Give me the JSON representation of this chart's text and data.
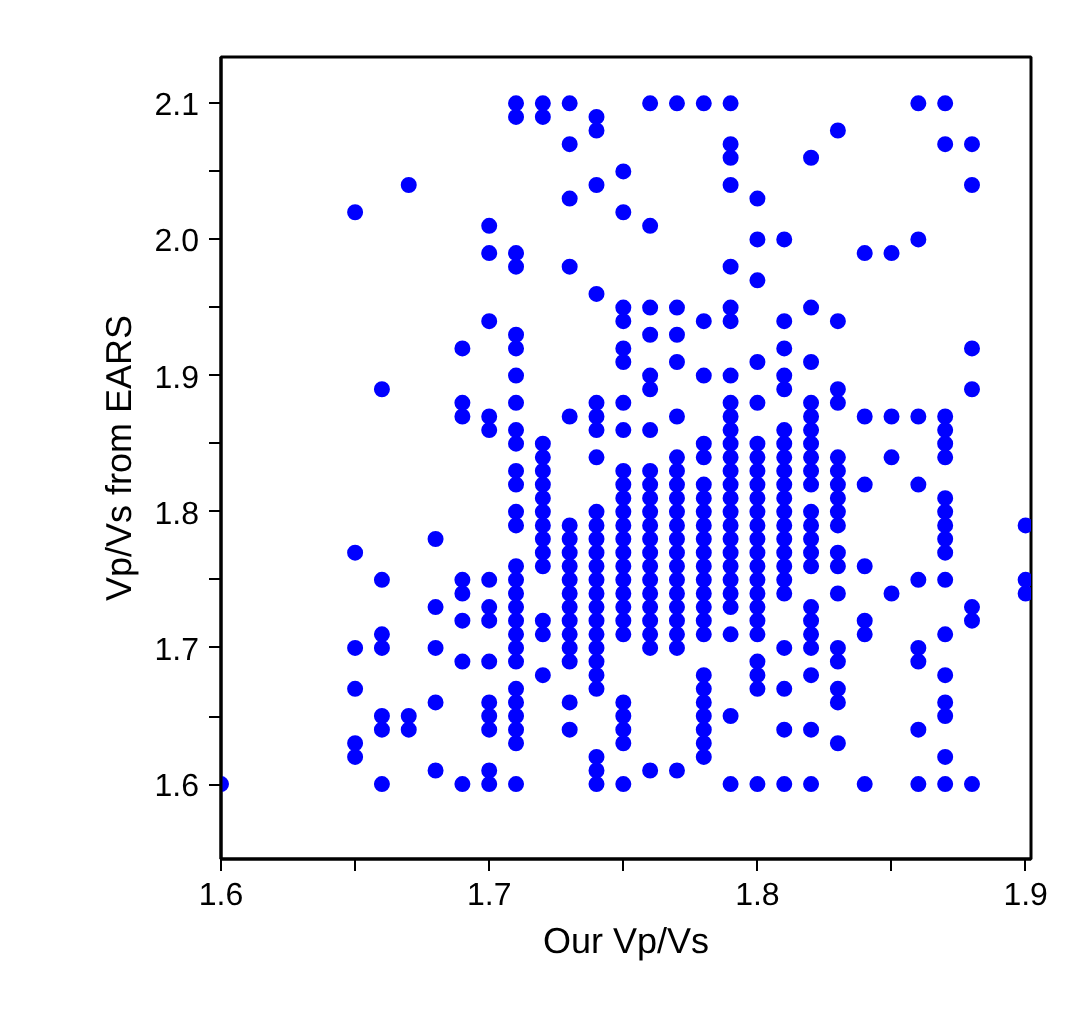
{
  "chart_data": {
    "type": "scatter",
    "xlabel": "Our Vp/Vs",
    "ylabel": "Vp/Vs from EARS",
    "xlim": [
      1.6,
      1.902
    ],
    "ylim": [
      1.545,
      2.134
    ],
    "xticks": [
      1.6,
      {
        "value": 1.65,
        "label": null
      },
      1.7,
      {
        "value": 1.75,
        "label": null
      },
      1.8,
      {
        "value": 1.85,
        "label": null
      },
      1.9
    ],
    "yticks": [
      1.6,
      {
        "value": 1.65,
        "label": null
      },
      1.7,
      {
        "value": 1.75,
        "label": null
      },
      1.8,
      {
        "value": 1.85,
        "label": null
      },
      1.9,
      {
        "value": 1.95,
        "label": null
      },
      {
        "value": 2.0,
        "label": "2.0"
      },
      {
        "value": 2.05,
        "label": null
      },
      2.1
    ],
    "grid": false,
    "marker": "circle",
    "series": [
      {
        "color": "#0000ff",
        "x": [
          1.6,
          1.65,
          1.65,
          1.65,
          1.65,
          1.65,
          1.65,
          1.66,
          1.66,
          1.66,
          1.66,
          1.66,
          1.66,
          1.66,
          1.67,
          1.67,
          1.67,
          1.68,
          1.68,
          1.68,
          1.68,
          1.68
        ],
        "values": [
          1.6,
          2.02,
          1.77,
          1.7,
          1.67,
          1.63,
          1.62,
          1.89,
          1.75,
          1.71,
          1.7,
          1.65,
          1.64,
          1.6,
          2.04,
          1.65,
          1.64,
          1.78,
          1.73,
          1.7,
          1.66,
          1.61
        ]
      },
      {
        "color": "#0000ff",
        "x": [
          1.69,
          1.69,
          1.69,
          1.69,
          1.69,
          1.69,
          1.69,
          1.69,
          1.7,
          1.7,
          1.7,
          1.7,
          1.7,
          1.7,
          1.7,
          1.7,
          1.7,
          1.7,
          1.7,
          1.7,
          1.7,
          1.7
        ],
        "values": [
          1.92,
          1.88,
          1.87,
          1.75,
          1.74,
          1.72,
          1.69,
          1.6,
          2.01,
          1.99,
          1.94,
          1.87,
          1.86,
          1.75,
          1.73,
          1.72,
          1.69,
          1.66,
          1.65,
          1.64,
          1.61,
          1.6
        ]
      },
      {
        "color": "#0000ff",
        "x": [
          1.71,
          1.71,
          1.71,
          1.71,
          1.71,
          1.71,
          1.71,
          1.71,
          1.71,
          1.71,
          1.71,
          1.71,
          1.71,
          1.71,
          1.71,
          1.71,
          1.71,
          1.71,
          1.71,
          1.71,
          1.71,
          1.71,
          1.71,
          1.71,
          1.71,
          1.71,
          1.71,
          1.71
        ],
        "values": [
          2.1,
          2.09,
          1.99,
          1.98,
          1.93,
          1.92,
          1.9,
          1.88,
          1.86,
          1.85,
          1.83,
          1.82,
          1.8,
          1.79,
          1.76,
          1.75,
          1.74,
          1.73,
          1.72,
          1.71,
          1.7,
          1.69,
          1.67,
          1.66,
          1.65,
          1.64,
          1.63,
          1.6
        ]
      },
      {
        "color": "#0000ff",
        "x": [
          1.72,
          1.72,
          1.72,
          1.72,
          1.72,
          1.72,
          1.72,
          1.72,
          1.72,
          1.72,
          1.72,
          1.72,
          1.72,
          1.72,
          1.72
        ],
        "values": [
          2.1,
          2.09,
          1.85,
          1.84,
          1.83,
          1.82,
          1.81,
          1.8,
          1.79,
          1.78,
          1.77,
          1.76,
          1.72,
          1.71,
          1.68
        ]
      },
      {
        "color": "#0000ff",
        "x": [
          1.73,
          1.73,
          1.73,
          1.73,
          1.73,
          1.73,
          1.73,
          1.73,
          1.73,
          1.73,
          1.73,
          1.73,
          1.73,
          1.73,
          1.73,
          1.73,
          1.73,
          1.73
        ],
        "values": [
          2.1,
          2.07,
          2.03,
          1.98,
          1.87,
          1.79,
          1.78,
          1.77,
          1.76,
          1.75,
          1.74,
          1.73,
          1.72,
          1.71,
          1.7,
          1.69,
          1.66,
          1.64
        ]
      },
      {
        "color": "#0000ff",
        "x": [
          1.74,
          1.74,
          1.74,
          1.74,
          1.74,
          1.74,
          1.74,
          1.74,
          1.74,
          1.74,
          1.74,
          1.74,
          1.74,
          1.74,
          1.74,
          1.74,
          1.74,
          1.74,
          1.74,
          1.74,
          1.74,
          1.74,
          1.74,
          1.74,
          1.74
        ],
        "values": [
          2.09,
          2.08,
          2.04,
          1.96,
          1.88,
          1.87,
          1.86,
          1.84,
          1.8,
          1.79,
          1.78,
          1.77,
          1.76,
          1.75,
          1.74,
          1.73,
          1.72,
          1.71,
          1.7,
          1.69,
          1.68,
          1.67,
          1.62,
          1.61,
          1.6
        ]
      },
      {
        "color": "#0000ff",
        "x": [
          1.75,
          1.75,
          1.75,
          1.75,
          1.75,
          1.75,
          1.75,
          1.75,
          1.75,
          1.75,
          1.75,
          1.75,
          1.75,
          1.75,
          1.75,
          1.75,
          1.75,
          1.75,
          1.75,
          1.75,
          1.75,
          1.75,
          1.75,
          1.75,
          1.75,
          1.75
        ],
        "values": [
          2.05,
          2.02,
          1.95,
          1.94,
          1.92,
          1.91,
          1.88,
          1.86,
          1.83,
          1.82,
          1.81,
          1.8,
          1.79,
          1.78,
          1.77,
          1.76,
          1.75,
          1.74,
          1.73,
          1.72,
          1.71,
          1.66,
          1.65,
          1.64,
          1.63,
          1.6
        ]
      },
      {
        "color": "#0000ff",
        "x": [
          1.76,
          1.76,
          1.76,
          1.76,
          1.76,
          1.76,
          1.76,
          1.76,
          1.76,
          1.76,
          1.76,
          1.76,
          1.76,
          1.76,
          1.76,
          1.76,
          1.76,
          1.76,
          1.76,
          1.76,
          1.76,
          1.76
        ],
        "values": [
          2.1,
          2.01,
          1.95,
          1.93,
          1.9,
          1.89,
          1.86,
          1.83,
          1.82,
          1.81,
          1.8,
          1.79,
          1.78,
          1.77,
          1.76,
          1.75,
          1.74,
          1.73,
          1.72,
          1.71,
          1.7,
          1.61
        ]
      },
      {
        "color": "#0000ff",
        "x": [
          1.77,
          1.77,
          1.77,
          1.77,
          1.77,
          1.77,
          1.77,
          1.77,
          1.77,
          1.77,
          1.77,
          1.77,
          1.77,
          1.77,
          1.77,
          1.77,
          1.77,
          1.77,
          1.77,
          1.77,
          1.77
        ],
        "values": [
          2.1,
          1.95,
          1.93,
          1.91,
          1.87,
          1.84,
          1.83,
          1.82,
          1.81,
          1.8,
          1.79,
          1.78,
          1.77,
          1.76,
          1.75,
          1.74,
          1.73,
          1.72,
          1.71,
          1.7,
          1.61
        ]
      },
      {
        "color": "#0000ff",
        "x": [
          1.78,
          1.78,
          1.78,
          1.78,
          1.78,
          1.78,
          1.78,
          1.78,
          1.78,
          1.78,
          1.78,
          1.78,
          1.78,
          1.78,
          1.78,
          1.78,
          1.78,
          1.78,
          1.78,
          1.78,
          1.78,
          1.78,
          1.78,
          1.78
        ],
        "values": [
          2.1,
          1.94,
          1.9,
          1.85,
          1.84,
          1.82,
          1.81,
          1.8,
          1.79,
          1.78,
          1.77,
          1.76,
          1.75,
          1.74,
          1.73,
          1.72,
          1.71,
          1.68,
          1.67,
          1.66,
          1.65,
          1.64,
          1.63,
          1.62
        ]
      },
      {
        "color": "#0000ff",
        "x": [
          1.79,
          1.79,
          1.79,
          1.79,
          1.79,
          1.79,
          1.79,
          1.79,
          1.79,
          1.79,
          1.79,
          1.79,
          1.79,
          1.79,
          1.79,
          1.79,
          1.79,
          1.79,
          1.79,
          1.79,
          1.79,
          1.79,
          1.79,
          1.79,
          1.79,
          1.79,
          1.79
        ],
        "values": [
          2.1,
          2.07,
          2.06,
          2.04,
          1.98,
          1.95,
          1.94,
          1.9,
          1.88,
          1.87,
          1.86,
          1.85,
          1.84,
          1.83,
          1.82,
          1.81,
          1.8,
          1.79,
          1.78,
          1.77,
          1.76,
          1.75,
          1.74,
          1.73,
          1.71,
          1.65,
          1.6
        ]
      },
      {
        "color": "#0000ff",
        "x": [
          1.8,
          1.8,
          1.8,
          1.8,
          1.8,
          1.8,
          1.8,
          1.8,
          1.8,
          1.8,
          1.8,
          1.8,
          1.8,
          1.8,
          1.8,
          1.8,
          1.8,
          1.8,
          1.8,
          1.8,
          1.8,
          1.8,
          1.8,
          1.8
        ],
        "values": [
          2.03,
          2.0,
          1.97,
          1.91,
          1.88,
          1.85,
          1.84,
          1.83,
          1.82,
          1.81,
          1.8,
          1.79,
          1.78,
          1.77,
          1.76,
          1.75,
          1.74,
          1.73,
          1.72,
          1.71,
          1.69,
          1.68,
          1.67,
          1.6
        ]
      },
      {
        "color": "#0000ff",
        "x": [
          1.81,
          1.81,
          1.81,
          1.81,
          1.81,
          1.81,
          1.81,
          1.81,
          1.81,
          1.81,
          1.81,
          1.81,
          1.81,
          1.81,
          1.81,
          1.81,
          1.81,
          1.81,
          1.81,
          1.81,
          1.81,
          1.81
        ],
        "values": [
          2.0,
          1.94,
          1.92,
          1.9,
          1.89,
          1.86,
          1.85,
          1.84,
          1.83,
          1.82,
          1.81,
          1.8,
          1.79,
          1.78,
          1.77,
          1.76,
          1.75,
          1.74,
          1.7,
          1.67,
          1.64,
          1.6
        ]
      },
      {
        "color": "#0000ff",
        "x": [
          1.82,
          1.82,
          1.82,
          1.82,
          1.82,
          1.82,
          1.82,
          1.82,
          1.82,
          1.82,
          1.82,
          1.82,
          1.82,
          1.82,
          1.82,
          1.82,
          1.82,
          1.82,
          1.82,
          1.82,
          1.82,
          1.82
        ],
        "values": [
          2.06,
          1.95,
          1.91,
          1.88,
          1.87,
          1.86,
          1.85,
          1.84,
          1.83,
          1.82,
          1.8,
          1.79,
          1.78,
          1.77,
          1.76,
          1.73,
          1.72,
          1.71,
          1.7,
          1.68,
          1.64,
          1.6
        ]
      },
      {
        "color": "#0000ff",
        "x": [
          1.83,
          1.83,
          1.83,
          1.83,
          1.83,
          1.83,
          1.83,
          1.83,
          1.83,
          1.83,
          1.83,
          1.83,
          1.83,
          1.83,
          1.83,
          1.83,
          1.83,
          1.83
        ],
        "values": [
          2.08,
          1.94,
          1.89,
          1.88,
          1.84,
          1.83,
          1.82,
          1.81,
          1.8,
          1.79,
          1.77,
          1.76,
          1.74,
          1.7,
          1.69,
          1.67,
          1.66,
          1.63
        ]
      },
      {
        "color": "#0000ff",
        "x": [
          1.84,
          1.84,
          1.84,
          1.84,
          1.84,
          1.84,
          1.84,
          1.85,
          1.85,
          1.85,
          1.85,
          1.86,
          1.86,
          1.86,
          1.86,
          1.86,
          1.86,
          1.86,
          1.86,
          1.86
        ],
        "values": [
          1.99,
          1.87,
          1.82,
          1.76,
          1.72,
          1.71,
          1.6,
          1.99,
          1.87,
          1.84,
          1.74,
          2.1,
          2.0,
          1.87,
          1.82,
          1.75,
          1.7,
          1.69,
          1.64,
          1.6
        ]
      },
      {
        "color": "#0000ff",
        "x": [
          1.87,
          1.87,
          1.87,
          1.87,
          1.87,
          1.87,
          1.87,
          1.87,
          1.87,
          1.87,
          1.87,
          1.87,
          1.87,
          1.87,
          1.87,
          1.87,
          1.87,
          1.87
        ],
        "values": [
          2.1,
          2.07,
          1.87,
          1.86,
          1.85,
          1.84,
          1.81,
          1.8,
          1.79,
          1.78,
          1.77,
          1.75,
          1.71,
          1.68,
          1.66,
          1.65,
          1.62,
          1.6
        ]
      },
      {
        "color": "#0000ff",
        "x": [
          1.88,
          1.88,
          1.88,
          1.88,
          1.88,
          1.88,
          1.88,
          1.9,
          1.9,
          1.9
        ],
        "values": [
          2.07,
          2.04,
          1.92,
          1.89,
          1.73,
          1.72,
          1.6,
          1.79,
          1.75,
          1.74
        ]
      }
    ]
  }
}
